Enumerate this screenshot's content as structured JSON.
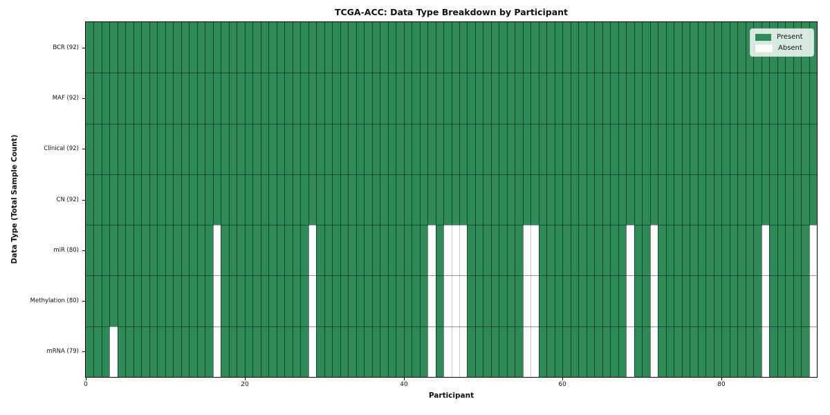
{
  "title": "TCGA-ACC: Data Type Breakdown by Participant",
  "xlabel": "Participant",
  "ylabel": "Data Type (Total Sample Count)",
  "legend": {
    "items": [
      {
        "label": "Present",
        "color": "#2e8b57"
      },
      {
        "label": "Absent",
        "color": "#ffffff"
      }
    ]
  },
  "colors": {
    "present": "#2e8b57",
    "absent": "#ffffff",
    "cell_edge_dark": "rgba(0,0,0,0.5)",
    "cell_edge_light": "#c9c9c9",
    "row_divider": "rgba(0,0,0,0.42)",
    "spine": "#000000",
    "legend_bg": "rgba(255,255,255,0.82)"
  },
  "chart_data": {
    "type": "heatmap",
    "title": "TCGA-ACC: Data Type Breakdown by Participant",
    "xlabel": "Participant",
    "ylabel": "Data Type (Total Sample Count)",
    "n_participants": 92,
    "x_ticks": [
      0,
      20,
      40,
      60,
      80
    ],
    "legend_position": "upper right",
    "value_legend": {
      "present": "Present",
      "absent": "Absent"
    },
    "rows": [
      {
        "label": "BCR (92)",
        "data_type": "BCR",
        "present_count": 92,
        "absent_participants": []
      },
      {
        "label": "MAF (92)",
        "data_type": "MAF",
        "present_count": 92,
        "absent_participants": []
      },
      {
        "label": "Clinical (92)",
        "data_type": "Clinical",
        "present_count": 92,
        "absent_participants": []
      },
      {
        "label": "CN (92)",
        "data_type": "CN",
        "present_count": 92,
        "absent_participants": []
      },
      {
        "label": "miR (80)",
        "data_type": "miR",
        "present_count": 80,
        "absent_participants": [
          16,
          28,
          43,
          45,
          46,
          47,
          55,
          56,
          68,
          71,
          85,
          91
        ]
      },
      {
        "label": "Methylation (80)",
        "data_type": "Methylation",
        "present_count": 80,
        "absent_participants": [
          16,
          28,
          43,
          45,
          46,
          47,
          55,
          56,
          68,
          71,
          85,
          91
        ]
      },
      {
        "label": "mRNA (79)",
        "data_type": "mRNA",
        "present_count": 79,
        "absent_participants": [
          3,
          16,
          28,
          43,
          45,
          46,
          47,
          55,
          56,
          68,
          71,
          85,
          91
        ]
      }
    ]
  }
}
